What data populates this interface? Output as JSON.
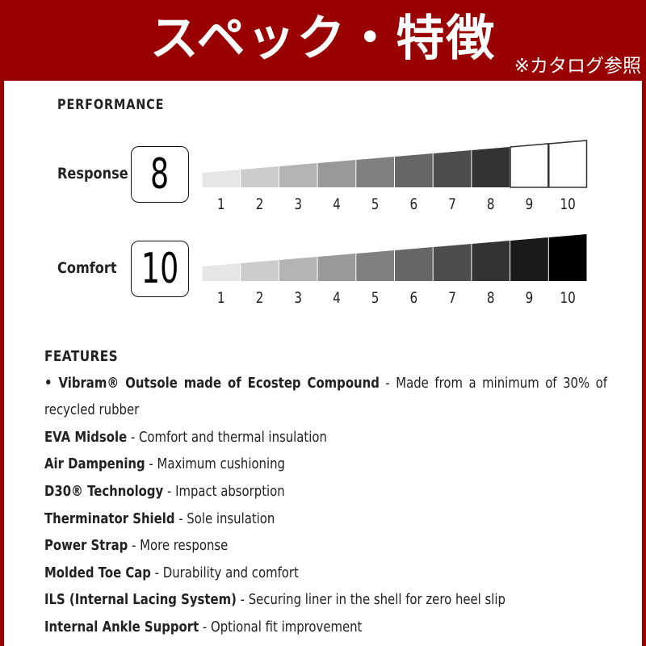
{
  "header": {
    "title": "スペック・特徴",
    "note": "※カタログ参照"
  },
  "performance": {
    "heading": "PERFORMANCE",
    "scale": [
      "1",
      "2",
      "3",
      "4",
      "5",
      "6",
      "7",
      "8",
      "9",
      "10"
    ],
    "segment_colors": [
      "#e6e6e6",
      "#cccccc",
      "#b3b3b3",
      "#999999",
      "#808080",
      "#666666",
      "#4d4d4d",
      "#333333",
      "#1a1a1a",
      "#000000"
    ],
    "metrics": [
      {
        "label": "Response",
        "score": "8",
        "value": 8,
        "max": 10
      },
      {
        "label": "Comfort",
        "score": "10",
        "value": 10,
        "max": 10
      }
    ]
  },
  "features": {
    "heading": "FEATURES",
    "items": [
      {
        "name": "• Vibram® Outsole made of Ecostep Compound",
        "desc": " - Made from a minimum of 30% of recycled rubber"
      },
      {
        "name": "EVA Midsole",
        "desc": " - Comfort and thermal insulation"
      },
      {
        "name": "Air Dampening",
        "desc": " - Maximum cushioning"
      },
      {
        "name": "D30® Technology",
        "desc": " - Impact absorption"
      },
      {
        "name": "Therminator Shield",
        "desc": " - Sole insulation"
      },
      {
        "name": "Power Strap",
        "desc": " - More response"
      },
      {
        "name": "Molded Toe Cap",
        "desc": " - Durability and comfort"
      },
      {
        "name": "ILS (Internal Lacing System)",
        "desc": " - Securing liner in the shell for zero heel slip"
      },
      {
        "name": "Internal Ankle Support",
        "desc": " - Optional fit improvement"
      }
    ]
  }
}
